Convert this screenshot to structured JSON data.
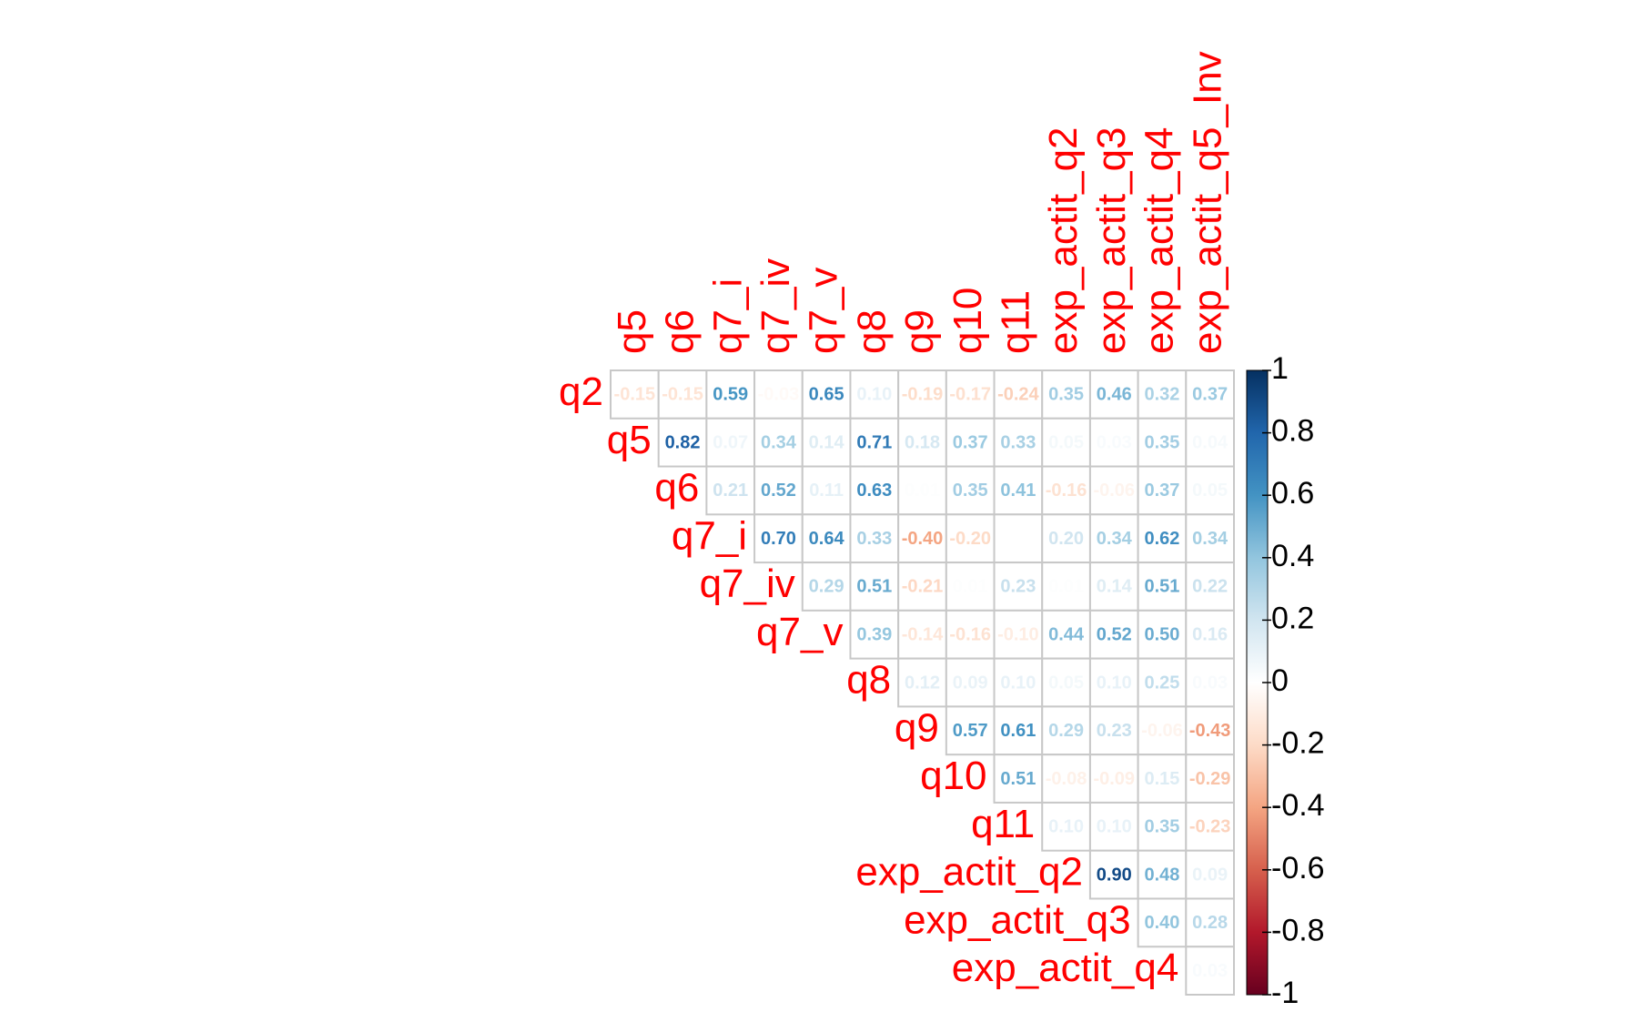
{
  "chart_data": {
    "type": "corrplot",
    "rows": [
      "q2",
      "q5",
      "q6",
      "q7_i",
      "q7_iv",
      "q7_v",
      "q8",
      "q9",
      "q10",
      "q11",
      "exp_actit_q2",
      "exp_actit_q3",
      "exp_actit_q4"
    ],
    "columns": [
      "q5",
      "q6",
      "q7_i",
      "q7_iv",
      "q7_v",
      "q8",
      "q9",
      "q10",
      "q11",
      "exp_actit_q2",
      "exp_actit_q3",
      "exp_actit_q4",
      "exp_actit_q5_Inv"
    ],
    "values": [
      [
        -0.15,
        -0.15,
        0.59,
        -0.03,
        0.65,
        0.1,
        -0.19,
        -0.17,
        -0.24,
        0.35,
        0.46,
        0.32,
        0.37
      ],
      [
        0.82,
        0.07,
        0.34,
        0.14,
        0.71,
        0.18,
        0.37,
        0.33,
        0.05,
        0.03,
        0.35,
        0.04
      ],
      [
        0.21,
        0.52,
        0.11,
        0.63,
        0.01,
        0.35,
        0.41,
        -0.16,
        -0.06,
        0.37,
        0.05
      ],
      [
        0.7,
        0.64,
        0.33,
        -0.4,
        -0.2,
        0,
        0.2,
        0.34,
        0.62,
        0.34
      ],
      [
        0.29,
        0.51,
        -0.21,
        0.01,
        0.23,
        0.01,
        0.14,
        0.51,
        0.22
      ],
      [
        0.39,
        -0.14,
        -0.16,
        -0.1,
        0.44,
        0.52,
        0.5,
        0.16
      ],
      [
        0.12,
        0.09,
        0.1,
        0.05,
        0.1,
        0.25,
        0.03
      ],
      [
        0.57,
        0.61,
        0.29,
        0.23,
        -0.06,
        -0.43
      ],
      [
        0.51,
        -0.08,
        -0.09,
        0.15,
        -0.29
      ],
      [
        0.1,
        0.1,
        0.35,
        -0.23
      ],
      [
        0.9,
        0.48,
        0.09
      ],
      [
        0.4,
        0.28
      ],
      [
        0.03
      ]
    ],
    "value_labels": [
      [
        "-0.15",
        "-0.15",
        "0.59",
        "-0.03",
        "0.65",
        "0.10",
        "-0.19",
        "-0.17",
        "-0.24",
        "0.35",
        "0.46",
        "0.32",
        "0.37"
      ],
      [
        "0.82",
        "0.07",
        "0.34",
        "0.14",
        "0.71",
        "0.18",
        "0.37",
        "0.33",
        "0.05",
        "0.03",
        "0.35",
        "0.04"
      ],
      [
        "0.21",
        "0.52",
        "0.11",
        "0.63",
        "0.01",
        "0.35",
        "0.41",
        "-0.16",
        "-0.06",
        "0.37",
        "0.05"
      ],
      [
        "0.70",
        "0.64",
        "0.33",
        "-0.40",
        "-0.20",
        "0.00",
        "0.20",
        "0.34",
        "0.62",
        "0.34"
      ],
      [
        "0.29",
        "0.51",
        "-0.21",
        "0.01",
        "0.23",
        "0.01",
        "0.14",
        "0.51",
        "0.22"
      ],
      [
        "0.39",
        "-0.14",
        "-0.16",
        "-0.10",
        "0.44",
        "0.52",
        "0.50",
        "0.16"
      ],
      [
        "0.12",
        "0.09",
        "0.10",
        "0.05",
        "0.10",
        "0.25",
        "0.03"
      ],
      [
        "0.57",
        "0.61",
        "0.29",
        "0.23",
        "-0.06",
        "-0.43"
      ],
      [
        "0.51",
        "-0.08",
        "-0.09",
        "0.15",
        "-0.29"
      ],
      [
        "0.10",
        "0.10",
        "0.35",
        "-0.23"
      ],
      [
        "0.90",
        "0.48",
        "0.09"
      ],
      [
        "0.40",
        "0.28"
      ],
      [
        "0.03"
      ]
    ],
    "colors": [
      "#67001F",
      "#B2182B",
      "#D6604D",
      "#F4A582",
      "#FDDBC7",
      "#FFFFFF",
      "#D1E5F0",
      "#92C5DE",
      "#4393C3",
      "#2166AC",
      "#053061"
    ],
    "clim": [
      -1,
      1
    ],
    "colorbar_ticks": [
      1,
      0.8,
      0.6,
      0.4,
      0.2,
      0,
      -0.2,
      -0.4,
      -0.6,
      -0.8,
      -1
    ],
    "label_color": "#FF0000"
  }
}
